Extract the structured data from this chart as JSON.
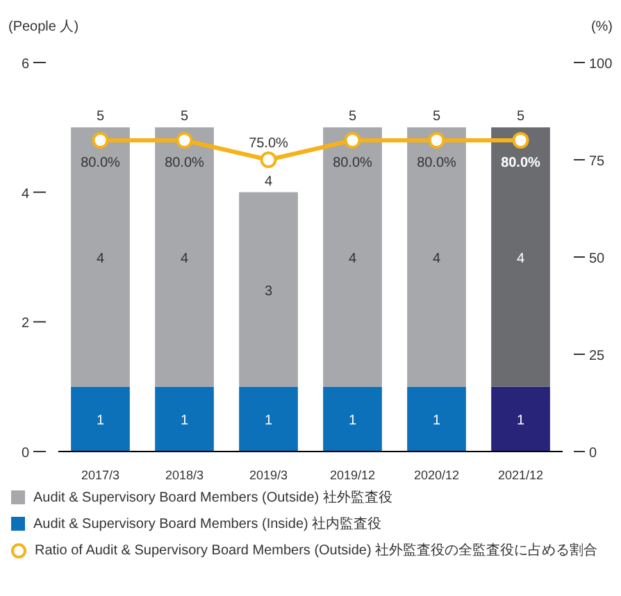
{
  "chart_data": {
    "type": "bar",
    "stacked": true,
    "ylabel": "(People 人)",
    "y2label": "(%)",
    "categories": [
      "2017/3",
      "2018/3",
      "2019/3",
      "2019/12",
      "2020/12",
      "2021/12"
    ],
    "series": [
      {
        "name": "Audit & Supervisory Board Members (Inside) 社内監査役",
        "color": "#0c71b9",
        "colors": [
          "#0c71b9",
          "#0c71b9",
          "#0c71b9",
          "#0c71b9",
          "#0c71b9",
          "#27247a"
        ],
        "values": [
          1,
          1,
          1,
          1,
          1,
          1
        ]
      },
      {
        "name": "Audit & Supervisory Board Members (Outside) 社外監査役",
        "color": "#a7a8ab",
        "colors": [
          "#a7a8ab",
          "#a7a8ab",
          "#a7a8ab",
          "#a7a8ab",
          "#a7a8ab",
          "#6b6c70"
        ],
        "values": [
          4,
          4,
          3,
          4,
          4,
          4
        ]
      },
      {
        "name": "Ratio of Audit & Supervisory Board Members (Outside) 社外監査役の全監査役に占める割合",
        "type": "line",
        "axis": "y2",
        "color": "#f5b21b",
        "values": [
          80,
          80,
          75,
          80,
          80,
          80
        ],
        "value_labels": [
          "80.0%",
          "80.0%",
          "75.0%",
          "80.0%",
          "80.0%",
          "80.0%"
        ]
      }
    ],
    "totals": [
      "5",
      "5",
      "4",
      "5",
      "5",
      "5"
    ],
    "data_labels": true,
    "marker": "circle",
    "line_style": "solid",
    "legend": "bottom",
    "grid": false,
    "ylim": [
      0,
      6
    ],
    "yticks": [
      0,
      2,
      4,
      6
    ],
    "y2lim": [
      0,
      100
    ],
    "y2ticks": [
      0,
      25,
      50,
      75,
      100
    ]
  }
}
